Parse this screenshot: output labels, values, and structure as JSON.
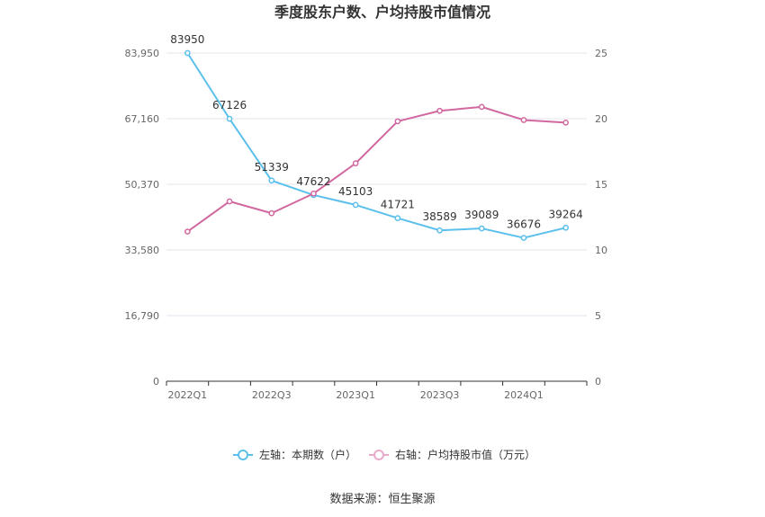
{
  "chart_data": {
    "type": "line",
    "title": "季度股东户数、户均持股市值情况",
    "x": [
      "2022Q1",
      "2022Q2",
      "2022Q3",
      "2022Q4",
      "2023Q1",
      "2023Q2",
      "2023Q3",
      "2023Q4",
      "2024Q1",
      "2024Q2"
    ],
    "x_tick_labels": [
      "2022Q1",
      "2022Q3",
      "2023Q1",
      "2023Q3",
      "2024Q1"
    ],
    "y_left": {
      "ticks": [
        "0",
        "16,790",
        "33,580",
        "50,370",
        "67,160",
        "83,950"
      ],
      "range": [
        0,
        83950
      ]
    },
    "y_right": {
      "ticks": [
        "0",
        "5",
        "10",
        "15",
        "20",
        "25"
      ],
      "range": [
        0,
        25
      ]
    },
    "series": [
      {
        "name": "左轴：本期数（户）",
        "axis": "left",
        "color": "#5bc0eb",
        "values": [
          83950,
          67126,
          51339,
          47622,
          45103,
          41721,
          38589,
          39089,
          36676,
          39264
        ],
        "labels": [
          "83950",
          "67126",
          "51339",
          "47622",
          "45103",
          "41721",
          "38589",
          "39089",
          "36676",
          "39264"
        ]
      },
      {
        "name": "右轴：户均持股市值（万元）",
        "axis": "right",
        "color": "#d1689f",
        "values": [
          11.4,
          13.7,
          12.8,
          14.3,
          16.6,
          19.8,
          20.6,
          20.9,
          19.9,
          19.7
        ]
      }
    ],
    "grid": true,
    "legend_position": "bottom",
    "source": "数据来源：恒生聚源"
  }
}
